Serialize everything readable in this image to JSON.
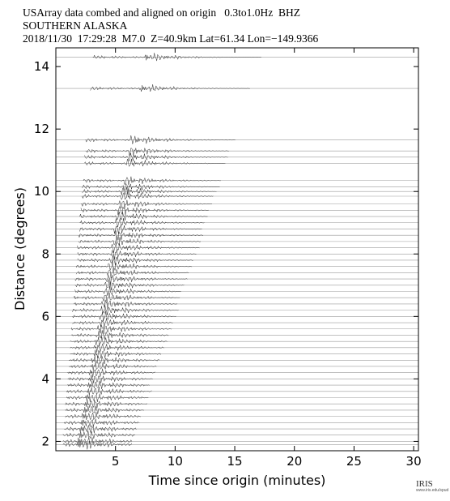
{
  "chart_data": {
    "type": "record-section",
    "title": "USArray data combed and aligned on origin   0.3to1.0Hz  BHZ",
    "subtitle": "SOUTHERN ALASKA",
    "caption": "2018/11/30  17:29:28  M7.0  Z=40.9km Lat=61.34 Lon=−149.9366",
    "x_label": "Time since origin (minutes)",
    "y_label": "Distance (degrees)",
    "xlim": [
      0,
      30.4
    ],
    "xticks": [
      5,
      10,
      15,
      20,
      25,
      30
    ],
    "ylim": [
      1.7,
      14.6
    ],
    "yticks": [
      2,
      4,
      6,
      8,
      10,
      12,
      14
    ],
    "trace_color": "#9a9a9a",
    "wiggle_color": "#2a2a2a",
    "distances": [
      14.3,
      13.3,
      11.65,
      11.3,
      11.1,
      10.9,
      10.35,
      10.15,
      10.0,
      9.85,
      9.6,
      9.4,
      9.2,
      9.0,
      8.8,
      8.6,
      8.4,
      8.2,
      8.0,
      7.8,
      7.6,
      7.4,
      7.2,
      7.0,
      6.8,
      6.6,
      6.4,
      6.2,
      6.0,
      5.8,
      5.6,
      5.4,
      5.2,
      5.0,
      4.8,
      4.6,
      4.4,
      4.2,
      4.0,
      3.8,
      3.6,
      3.4,
      3.2,
      3.0,
      2.8,
      2.6,
      2.4,
      2.2,
      2.0,
      1.9
    ],
    "p_arrival": [
      3.1,
      2.9,
      2.5,
      2.5,
      2.4,
      2.4,
      2.3,
      2.2,
      2.2,
      2.2,
      2.1,
      2.1,
      2.0,
      2.0,
      2.0,
      1.9,
      1.9,
      1.8,
      1.8,
      1.8,
      1.7,
      1.7,
      1.6,
      1.6,
      1.6,
      1.5,
      1.5,
      1.4,
      1.4,
      1.4,
      1.3,
      1.3,
      1.2,
      1.2,
      1.2,
      1.1,
      1.1,
      1.0,
      1.0,
      1.0,
      0.9,
      0.9,
      0.8,
      0.8,
      0.8,
      0.7,
      0.7,
      0.6,
      0.6,
      0.6
    ],
    "s_arrival": [
      7.5,
      7.0,
      6.3,
      6.1,
      6.0,
      5.9,
      5.7,
      5.6,
      5.5,
      5.4,
      5.3,
      5.2,
      5.1,
      5.0,
      4.9,
      4.9,
      4.8,
      4.7,
      4.6,
      4.5,
      4.4,
      4.3,
      4.2,
      4.1,
      4.0,
      3.9,
      3.8,
      3.8,
      3.7,
      3.6,
      3.5,
      3.4,
      3.3,
      3.2,
      3.1,
      3.0,
      2.9,
      2.8,
      2.7,
      2.6,
      2.6,
      2.5,
      2.4,
      2.3,
      2.2,
      2.1,
      2.0,
      1.9,
      1.8,
      1.8
    ],
    "logo": "IRIS",
    "logo_url": "www.iris.edu/spud"
  }
}
